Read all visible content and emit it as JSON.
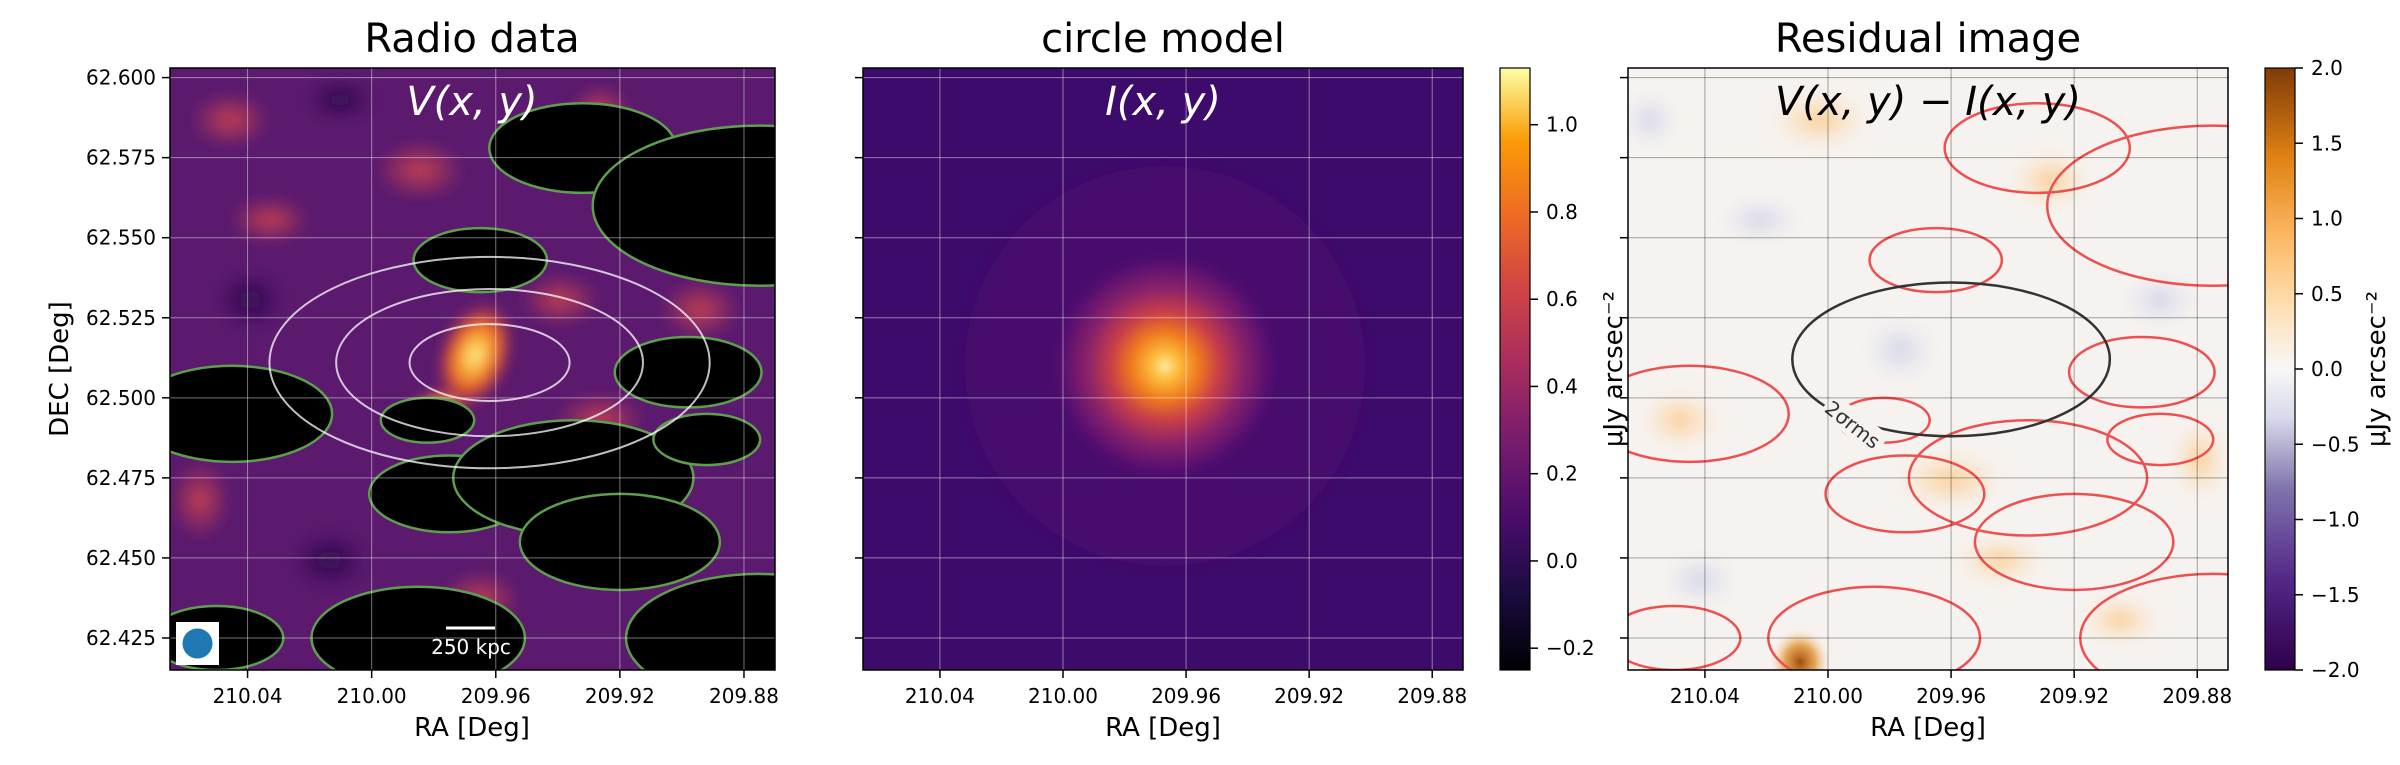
{
  "chart_data": [
    {
      "type": "heatmap",
      "title": "Radio data",
      "annotation": "V(x, y)",
      "xlabel": "RA [Deg]",
      "ylabel": "DEC [Deg]",
      "xlim": [
        210.065,
        209.87
      ],
      "ylim": [
        62.415,
        62.603
      ],
      "xticks": [
        210.04,
        210.0,
        209.96,
        209.92,
        209.88
      ],
      "xtick_labels": [
        "210.04",
        "210.00",
        "209.96",
        "209.92",
        "209.88"
      ],
      "yticks": [
        62.425,
        62.45,
        62.475,
        62.5,
        62.525,
        62.55,
        62.575,
        62.6
      ],
      "ytick_labels": [
        "62.425",
        "62.450",
        "62.475",
        "62.500",
        "62.525",
        "62.550",
        "62.575",
        "62.600"
      ],
      "colormap": "inferno",
      "grid": true,
      "masked_sources": [
        {
          "ra": 209.985,
          "dec": 62.425,
          "r": 0.016
        },
        {
          "ra": 210.05,
          "dec": 62.425,
          "r": 0.01
        },
        {
          "ra": 209.875,
          "dec": 62.425,
          "r": 0.02
        },
        {
          "ra": 210.045,
          "dec": 62.495,
          "r": 0.015
        },
        {
          "ra": 209.975,
          "dec": 62.47,
          "r": 0.012
        },
        {
          "ra": 209.982,
          "dec": 62.493,
          "r": 0.007
        },
        {
          "ra": 209.935,
          "dec": 62.475,
          "r": 0.018
        },
        {
          "ra": 209.92,
          "dec": 62.455,
          "r": 0.015
        },
        {
          "ra": 209.932,
          "dec": 62.578,
          "r": 0.014
        },
        {
          "ra": 209.965,
          "dec": 62.543,
          "r": 0.01
        },
        {
          "ra": 209.875,
          "dec": 62.56,
          "r": 0.025
        },
        {
          "ra": 209.898,
          "dec": 62.508,
          "r": 0.011
        },
        {
          "ra": 209.892,
          "dec": 62.487,
          "r": 0.008
        }
      ],
      "source_center": {
        "ra": 209.962,
        "dec": 62.511
      },
      "contour_circles_deg": [
        0.012,
        0.023,
        0.033
      ],
      "scalebar_label": "250 kpc"
    },
    {
      "type": "heatmap",
      "title": "circle model",
      "annotation": "I(x, y)",
      "xlabel": "RA [Deg]",
      "xlim": [
        210.065,
        209.87
      ],
      "ylim": [
        62.415,
        62.603
      ],
      "xticks": [
        210.04,
        210.0,
        209.96,
        209.92,
        209.88
      ],
      "xtick_labels": [
        "210.04",
        "210.00",
        "209.96",
        "209.92",
        "209.88"
      ],
      "colormap": "inferno",
      "grid": true,
      "model_center": {
        "ra": 209.962,
        "dec": 62.509
      },
      "model_peak": 1.1,
      "model_sigma_deg": 0.012,
      "colorbar": {
        "range": [
          -0.25,
          1.13
        ],
        "ticks": [
          -0.2,
          0.0,
          0.2,
          0.4,
          0.6,
          0.8,
          1.0
        ],
        "tick_labels": [
          "−0.2",
          "0.0",
          "0.2",
          "0.4",
          "0.6",
          "0.8",
          "1.0"
        ]
      }
    },
    {
      "type": "heatmap",
      "title": "Residual image",
      "annotation": "V(x, y) − I(x, y)",
      "xlabel": "RA [Deg]",
      "ylabel": "μJy arcsec⁻²",
      "xlim": [
        210.065,
        209.87
      ],
      "ylim": [
        62.415,
        62.603
      ],
      "xticks": [
        210.04,
        210.0,
        209.96,
        209.92,
        209.88
      ],
      "xtick_labels": [
        "210.04",
        "210.00",
        "209.96",
        "209.92",
        "209.88"
      ],
      "colormap": "PuOr_r",
      "grid": true,
      "sigma_circle": {
        "ra": 209.96,
        "dec": 62.512,
        "r": 0.024,
        "label": "2σrms"
      },
      "colorbar": {
        "range": [
          -2.0,
          2.0
        ],
        "ticks": [
          -2.0,
          -1.5,
          -1.0,
          -0.5,
          0.0,
          0.5,
          1.0,
          1.5,
          2.0
        ],
        "tick_labels": [
          "−2.0",
          "−1.5",
          "−1.0",
          "−0.5",
          "0.0",
          "0.5",
          "1.0",
          "1.5",
          "2.0"
        ],
        "label": "μJy arcsec⁻²"
      }
    }
  ]
}
